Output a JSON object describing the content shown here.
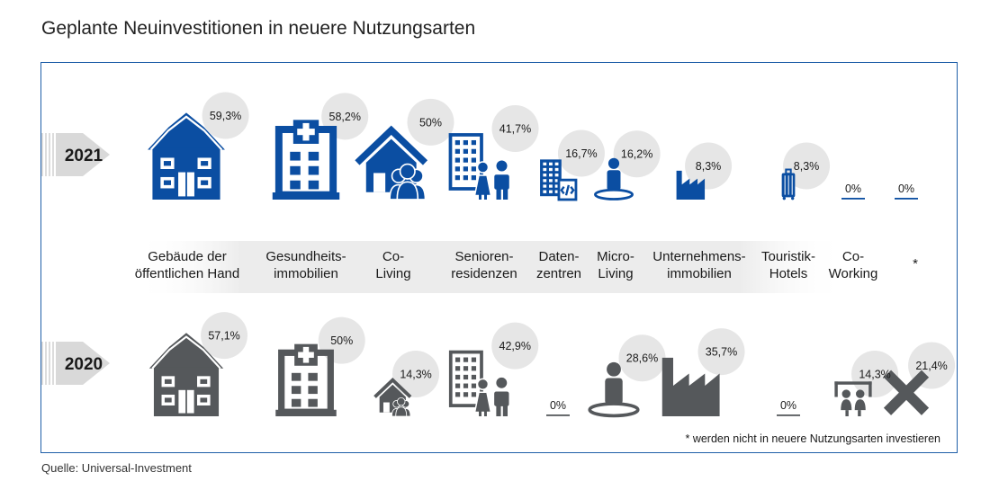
{
  "title": "Geplante Neuinvestitionen in neuere Nutzungsarten",
  "source": "Quelle: Universal-Investment",
  "footnote": "* werden nicht in neuere Nutzungsarten investieren",
  "colors": {
    "year_2021": "#0b4ea2",
    "year_2020": "#55585b",
    "bubble": "#e6e6e6",
    "frame": "#1f5fa8"
  },
  "chart_data": {
    "type": "bubble-icon-comparison",
    "years": [
      "2021",
      "2020"
    ],
    "categories": [
      {
        "label": [
          "Gebäude der",
          "öffentlichen Hand"
        ],
        "icon": "public-building-icon"
      },
      {
        "label": [
          "Gesundheits-",
          "immobilien"
        ],
        "icon": "hospital-icon"
      },
      {
        "label": [
          "Co-",
          "Living"
        ],
        "icon": "co-living-icon"
      },
      {
        "label": [
          "Senioren-",
          "residenzen"
        ],
        "icon": "senior-residence-icon"
      },
      {
        "label": [
          "Daten-",
          "zentren"
        ],
        "icon": "data-center-icon"
      },
      {
        "label": [
          "Micro-",
          "Living"
        ],
        "icon": "micro-living-icon"
      },
      {
        "label": [
          "Unternehmens-",
          "immobilien"
        ],
        "icon": "factory-icon"
      },
      {
        "label": [
          "Touristik-",
          "Hotels"
        ],
        "icon": "hotel-icon"
      },
      {
        "label": [
          "Co-",
          "Working"
        ],
        "icon": "co-working-icon"
      },
      {
        "label": [
          "*"
        ],
        "icon": "none-cross-icon"
      }
    ],
    "series": [
      {
        "name": "2021",
        "values": [
          59.3,
          58.2,
          50,
          41.7,
          16.7,
          16.2,
          8.3,
          8.3,
          0,
          0
        ],
        "labels": [
          "59,3%",
          "58,2%",
          "50%",
          "41,7%",
          "16,7%",
          "16,2%",
          "8,3%",
          "8,3%",
          "0%",
          "0%"
        ]
      },
      {
        "name": "2020",
        "values": [
          57.1,
          50,
          14.3,
          42.9,
          0,
          28.6,
          35.7,
          0,
          14.3,
          21.4
        ],
        "labels": [
          "57,1%",
          "50%",
          "14,3%",
          "42,9%",
          "0%",
          "28,6%",
          "35,7%",
          "0%",
          "14,3%",
          "21,4%"
        ]
      }
    ]
  }
}
